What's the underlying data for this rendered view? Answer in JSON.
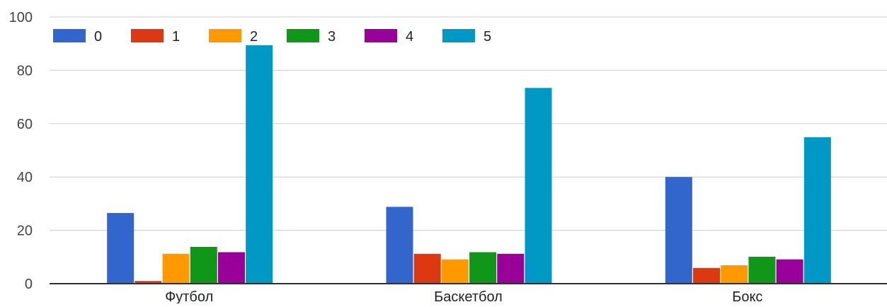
{
  "chart_data": {
    "type": "bar",
    "categories": [
      "Футбол",
      "Баскетбол",
      "Бокс"
    ],
    "series": [
      {
        "name": "0",
        "color": "#3366cc",
        "values": [
          26.5,
          28.8,
          40.0
        ]
      },
      {
        "name": "1",
        "color": "#dc3912",
        "values": [
          1.0,
          11.2,
          5.9
        ]
      },
      {
        "name": "2",
        "color": "#ff9900",
        "values": [
          11.2,
          9.1,
          6.9
        ]
      },
      {
        "name": "3",
        "color": "#109618",
        "values": [
          13.8,
          11.8,
          10.1
        ]
      },
      {
        "name": "4",
        "color": "#990099",
        "values": [
          11.8,
          11.2,
          9.1
        ]
      },
      {
        "name": "5",
        "color": "#0099c6",
        "values": [
          89.4,
          73.4,
          54.9
        ]
      }
    ],
    "yticks": [
      "0",
      "20",
      "40",
      "60",
      "80",
      "100"
    ],
    "ylim": [
      0,
      100
    ],
    "grid": true,
    "legend_position": "top-left",
    "title": "",
    "xlabel": "",
    "ylabel": ""
  }
}
